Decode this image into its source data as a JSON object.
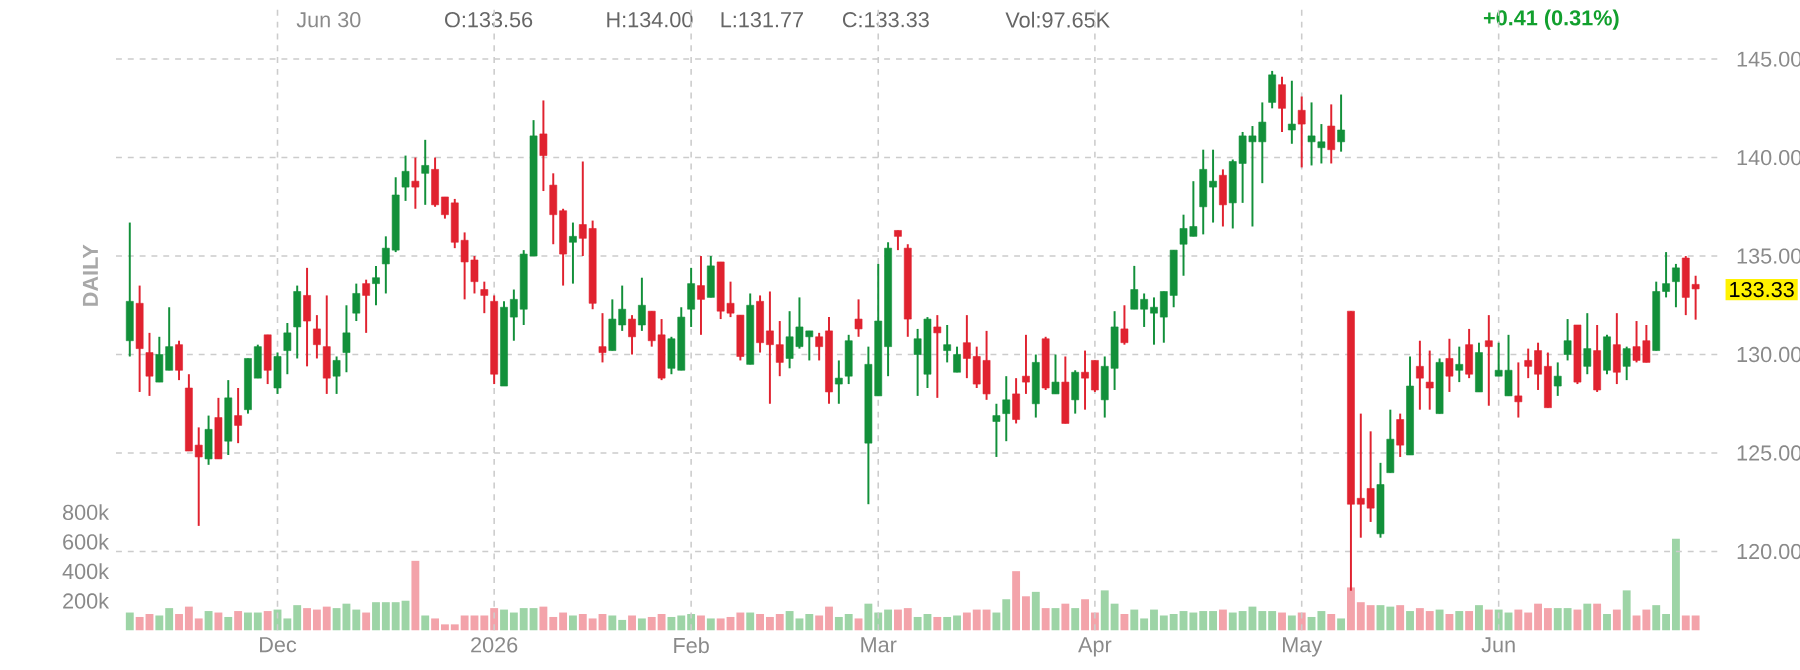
{
  "chart_data": {
    "type": "candlestick",
    "categories": [
      null,
      null,
      null,
      null,
      null,
      null,
      null,
      null,
      null,
      null,
      null,
      null,
      null,
      null,
      null,
      "Dec",
      null,
      null,
      null,
      null,
      null,
      null,
      null,
      null,
      null,
      null,
      null,
      null,
      null,
      null,
      null,
      null,
      null,
      null,
      null,
      null,
      null,
      "2026",
      null,
      null,
      null,
      null,
      null,
      null,
      null,
      null,
      null,
      null,
      null,
      null,
      null,
      null,
      null,
      null,
      null,
      null,
      null,
      "Feb",
      null,
      null,
      null,
      null,
      null,
      null,
      null,
      null,
      null,
      null,
      null,
      null,
      null,
      null,
      null,
      null,
      null,
      null,
      "Mar",
      null,
      null,
      null,
      null,
      null,
      null,
      null,
      null,
      null,
      null,
      null,
      null,
      null,
      null,
      null,
      null,
      null,
      null,
      null,
      null,
      null,
      "Apr",
      null,
      null,
      null,
      null,
      null,
      null,
      null,
      null,
      null,
      null,
      null,
      null,
      null,
      null,
      null,
      null,
      null,
      null,
      null,
      null,
      "May",
      null,
      null,
      null,
      null,
      null,
      null,
      null,
      null,
      null,
      null,
      null,
      null,
      null,
      null,
      null,
      null,
      null,
      null,
      null,
      "Jun",
      null,
      null,
      null,
      null,
      null,
      null,
      null,
      null,
      null,
      null,
      null,
      null,
      null,
      null,
      null,
      null,
      null,
      null,
      null,
      null
    ],
    "ohlc": [
      [
        130.7,
        136.7,
        129.9,
        132.7
      ],
      [
        132.6,
        133.5,
        128.1,
        130.3
      ],
      [
        130.1,
        131.1,
        127.9,
        128.9
      ],
      [
        128.6,
        130.9,
        128.6,
        130.0
      ],
      [
        129.2,
        132.4,
        129.2,
        130.4
      ],
      [
        130.5,
        130.7,
        128.7,
        129.2
      ],
      [
        128.3,
        129.0,
        125.1,
        125.1
      ],
      [
        125.4,
        126.3,
        121.3,
        124.8
      ],
      [
        124.7,
        126.9,
        124.4,
        126.2
      ],
      [
        126.8,
        127.8,
        124.7,
        124.7
      ],
      [
        125.6,
        128.7,
        124.9,
        127.8
      ],
      [
        126.9,
        128.3,
        125.5,
        126.4
      ],
      [
        127.2,
        129.8,
        127.0,
        129.8
      ],
      [
        128.8,
        130.5,
        128.8,
        130.4
      ],
      [
        131.0,
        131.0,
        128.5,
        129.2
      ],
      [
        128.3,
        130.1,
        128.0,
        129.9
      ],
      [
        130.2,
        131.6,
        129.0,
        131.1
      ],
      [
        131.4,
        133.5,
        129.8,
        133.2
      ],
      [
        133.0,
        134.4,
        129.4,
        131.7
      ],
      [
        131.3,
        132.0,
        129.8,
        130.5
      ],
      [
        130.4,
        133.0,
        128.0,
        128.8
      ],
      [
        128.9,
        129.9,
        128.0,
        129.7
      ],
      [
        130.1,
        132.5,
        129.1,
        131.1
      ],
      [
        132.1,
        133.6,
        131.7,
        133.1
      ],
      [
        133.6,
        133.8,
        131.1,
        133.0
      ],
      [
        133.6,
        134.5,
        132.5,
        133.9
      ],
      [
        134.6,
        136.0,
        133.1,
        135.4
      ],
      [
        135.3,
        139.0,
        135.2,
        138.1
      ],
      [
        138.5,
        140.1,
        137.8,
        139.3
      ],
      [
        138.8,
        140.0,
        137.4,
        138.5
      ],
      [
        139.2,
        140.9,
        137.6,
        139.6
      ],
      [
        139.4,
        140.0,
        137.5,
        137.6
      ],
      [
        138.0,
        138.0,
        136.9,
        137.1
      ],
      [
        137.7,
        137.9,
        135.4,
        135.7
      ],
      [
        135.8,
        136.2,
        132.8,
        134.7
      ],
      [
        134.8,
        135.0,
        133.1,
        133.7
      ],
      [
        133.3,
        133.7,
        132.1,
        133.0
      ],
      [
        132.7,
        133.0,
        128.5,
        129.0
      ],
      [
        128.4,
        132.7,
        128.4,
        132.4
      ],
      [
        131.9,
        133.3,
        130.7,
        132.8
      ],
      [
        132.3,
        135.3,
        131.5,
        135.1
      ],
      [
        135.0,
        141.9,
        135.0,
        141.1
      ],
      [
        141.2,
        142.9,
        138.3,
        140.1
      ],
      [
        138.6,
        139.2,
        135.6,
        137.1
      ],
      [
        137.3,
        137.4,
        133.5,
        135.1
      ],
      [
        135.7,
        136.7,
        133.6,
        136.0
      ],
      [
        136.6,
        139.8,
        135.0,
        135.9
      ],
      [
        136.4,
        136.8,
        132.3,
        132.6
      ],
      [
        130.4,
        132.1,
        129.6,
        130.1
      ],
      [
        130.2,
        132.8,
        130.2,
        131.8
      ],
      [
        131.5,
        133.5,
        131.2,
        132.3
      ],
      [
        131.8,
        132.0,
        130.0,
        130.9
      ],
      [
        131.5,
        133.9,
        131.2,
        132.5
      ],
      [
        132.2,
        132.2,
        130.4,
        130.7
      ],
      [
        131.0,
        131.8,
        128.7,
        128.8
      ],
      [
        129.3,
        130.9,
        129.0,
        130.8
      ],
      [
        129.2,
        132.4,
        129.2,
        131.9
      ],
      [
        132.3,
        134.4,
        131.4,
        133.6
      ],
      [
        133.5,
        135.0,
        131.0,
        132.8
      ],
      [
        132.9,
        135.0,
        132.9,
        134.5
      ],
      [
        134.7,
        134.7,
        131.8,
        132.2
      ],
      [
        132.6,
        133.7,
        131.9,
        132.1
      ],
      [
        132.0,
        132.0,
        129.7,
        129.9
      ],
      [
        129.5,
        133.1,
        129.5,
        132.5
      ],
      [
        132.7,
        133.0,
        130.1,
        130.6
      ],
      [
        131.2,
        133.2,
        127.5,
        130.5
      ],
      [
        130.5,
        131.7,
        128.9,
        129.6
      ],
      [
        129.8,
        132.2,
        129.3,
        130.9
      ],
      [
        130.4,
        132.9,
        130.3,
        131.4
      ],
      [
        130.9,
        131.2,
        129.7,
        131.2
      ],
      [
        130.9,
        131.1,
        129.7,
        130.4
      ],
      [
        131.2,
        131.9,
        127.5,
        128.1
      ],
      [
        128.5,
        129.7,
        127.5,
        128.8
      ],
      [
        128.9,
        131.0,
        128.5,
        130.7
      ],
      [
        131.8,
        132.8,
        130.9,
        131.3
      ],
      [
        125.5,
        130.4,
        122.4,
        129.5
      ],
      [
        127.9,
        134.6,
        127.9,
        131.7
      ],
      [
        130.4,
        135.7,
        128.9,
        135.4
      ],
      [
        136.3,
        136.3,
        135.3,
        136.0
      ],
      [
        135.4,
        135.6,
        130.9,
        131.8
      ],
      [
        130.0,
        131.3,
        127.9,
        130.8
      ],
      [
        129.0,
        131.9,
        128.3,
        131.8
      ],
      [
        131.4,
        132.0,
        127.8,
        131.1
      ],
      [
        130.2,
        131.5,
        129.6,
        130.5
      ],
      [
        129.1,
        130.4,
        129.1,
        130.0
      ],
      [
        130.6,
        132.0,
        128.8,
        129.8
      ],
      [
        129.9,
        130.4,
        128.3,
        128.5
      ],
      [
        129.7,
        131.2,
        127.7,
        128.0
      ],
      [
        126.6,
        127.5,
        124.8,
        126.9
      ],
      [
        127.0,
        128.9,
        125.6,
        127.7
      ],
      [
        128.0,
        128.8,
        126.5,
        126.7
      ],
      [
        128.9,
        131.0,
        128.0,
        128.6
      ],
      [
        127.5,
        130.0,
        126.8,
        129.6
      ],
      [
        130.8,
        130.9,
        128.2,
        128.3
      ],
      [
        128.0,
        130.0,
        128.0,
        128.6
      ],
      [
        128.6,
        129.9,
        126.5,
        126.5
      ],
      [
        127.7,
        129.2,
        127.0,
        129.1
      ],
      [
        129.1,
        130.2,
        127.2,
        128.8
      ],
      [
        129.7,
        129.7,
        128.1,
        128.2
      ],
      [
        127.7,
        129.9,
        126.8,
        129.4
      ],
      [
        129.3,
        132.2,
        128.2,
        131.4
      ],
      [
        131.3,
        132.5,
        130.5,
        130.6
      ],
      [
        132.3,
        134.5,
        132.3,
        133.3
      ],
      [
        132.3,
        133.1,
        131.4,
        132.8
      ],
      [
        132.1,
        132.9,
        130.5,
        132.4
      ],
      [
        131.9,
        133.2,
        130.6,
        133.2
      ],
      [
        133.0,
        135.3,
        132.4,
        135.3
      ],
      [
        135.6,
        137.1,
        134.0,
        136.4
      ],
      [
        136.0,
        138.8,
        136.0,
        136.5
      ],
      [
        137.5,
        140.4,
        136.1,
        139.4
      ],
      [
        138.5,
        140.4,
        136.7,
        138.8
      ],
      [
        139.1,
        139.4,
        136.5,
        137.6
      ],
      [
        137.7,
        139.9,
        136.4,
        139.8
      ],
      [
        139.7,
        141.3,
        137.7,
        141.1
      ],
      [
        140.8,
        141.6,
        136.5,
        141.1
      ],
      [
        140.8,
        142.8,
        138.7,
        141.8
      ],
      [
        142.8,
        144.4,
        142.5,
        144.2
      ],
      [
        143.7,
        144.1,
        141.3,
        142.5
      ],
      [
        141.4,
        143.9,
        140.7,
        141.7
      ],
      [
        142.4,
        143.1,
        139.5,
        141.7
      ],
      [
        140.8,
        142.8,
        139.6,
        141.1
      ],
      [
        140.5,
        141.7,
        139.7,
        140.8
      ],
      [
        141.6,
        142.7,
        139.7,
        140.4
      ],
      [
        140.8,
        143.2,
        140.3,
        141.4
      ],
      [
        132.2,
        132.2,
        118.0,
        122.4
      ],
      [
        122.7,
        127.0,
        120.7,
        122.4
      ],
      [
        123.2,
        126.1,
        121.5,
        122.2
      ],
      [
        120.9,
        124.5,
        120.7,
        123.4
      ],
      [
        124.0,
        127.2,
        124.0,
        125.7
      ],
      [
        126.7,
        127.0,
        124.8,
        125.4
      ],
      [
        124.9,
        129.9,
        124.9,
        128.4
      ],
      [
        129.4,
        130.7,
        127.2,
        128.8
      ],
      [
        128.6,
        130.2,
        127.2,
        128.3
      ],
      [
        127.0,
        129.8,
        127.0,
        129.6
      ],
      [
        129.8,
        130.8,
        128.1,
        128.9
      ],
      [
        129.2,
        130.4,
        128.6,
        129.5
      ],
      [
        130.5,
        131.3,
        128.8,
        129.0
      ],
      [
        128.1,
        130.6,
        128.1,
        130.1
      ],
      [
        130.7,
        132.0,
        127.4,
        130.4
      ],
      [
        128.9,
        130.6,
        128.9,
        129.2
      ],
      [
        127.9,
        131.0,
        127.9,
        129.2
      ],
      [
        127.9,
        129.6,
        126.8,
        127.6
      ],
      [
        129.7,
        130.3,
        128.8,
        129.4
      ],
      [
        130.2,
        130.6,
        128.2,
        129.0
      ],
      [
        129.4,
        130.1,
        127.3,
        127.3
      ],
      [
        128.4,
        129.6,
        127.9,
        128.9
      ],
      [
        130.0,
        131.8,
        129.7,
        130.7
      ],
      [
        131.5,
        131.5,
        128.5,
        128.6
      ],
      [
        129.4,
        132.1,
        129.0,
        130.3
      ],
      [
        130.2,
        131.5,
        128.1,
        128.2
      ],
      [
        129.2,
        131.0,
        129.0,
        130.9
      ],
      [
        130.5,
        132.1,
        128.5,
        129.1
      ],
      [
        129.4,
        130.4,
        128.7,
        130.3
      ],
      [
        130.4,
        131.7,
        129.6,
        129.7
      ],
      [
        130.7,
        131.5,
        129.6,
        129.6
      ],
      [
        130.2,
        133.7,
        130.2,
        133.2
      ],
      [
        133.2,
        135.2,
        132.9,
        133.6
      ],
      [
        133.7,
        134.6,
        132.4,
        134.4
      ],
      [
        134.9,
        135.0,
        132.0,
        132.9
      ],
      [
        133.56,
        134.0,
        131.77,
        133.33
      ]
    ],
    "colors": [
      "#12903a",
      "#e0222f",
      "#e0222f",
      "#12903a",
      "#12903a",
      "#e0222f",
      "#e0222f",
      "#e0222f",
      "#12903a",
      "#e0222f",
      "#12903a",
      "#e0222f",
      "#12903a",
      "#12903a",
      "#e0222f",
      "#12903a",
      "#12903a",
      "#12903a",
      "#e0222f",
      "#e0222f",
      "#e0222f",
      "#12903a",
      "#12903a",
      "#12903a",
      "#e0222f",
      "#12903a",
      "#12903a",
      "#12903a",
      "#12903a",
      "#e0222f",
      "#12903a",
      "#e0222f",
      "#e0222f",
      "#e0222f",
      "#e0222f",
      "#e0222f",
      "#e0222f",
      "#e0222f",
      "#12903a",
      "#12903a",
      "#12903a",
      "#12903a",
      "#e0222f",
      "#e0222f",
      "#e0222f",
      "#12903a",
      "#e0222f",
      "#e0222f",
      "#e0222f",
      "#12903a",
      "#12903a",
      "#e0222f",
      "#12903a",
      "#e0222f",
      "#e0222f",
      "#12903a",
      "#12903a",
      "#12903a",
      "#e0222f",
      "#12903a",
      "#e0222f",
      "#e0222f",
      "#e0222f",
      "#12903a",
      "#e0222f",
      "#e0222f",
      "#e0222f",
      "#12903a",
      "#12903a",
      "#12903a",
      "#e0222f",
      "#e0222f",
      "#12903a",
      "#12903a",
      "#e0222f",
      "#12903a",
      "#12903a",
      "#12903a",
      "#e0222f",
      "#e0222f",
      "#12903a",
      "#12903a",
      "#e0222f",
      "#12903a",
      "#12903a",
      "#e0222f",
      "#e0222f",
      "#e0222f",
      "#12903a",
      "#12903a",
      "#e0222f",
      "#e0222f",
      "#12903a",
      "#e0222f",
      "#12903a",
      "#e0222f",
      "#12903a",
      "#e0222f",
      "#e0222f",
      "#12903a",
      "#12903a",
      "#e0222f",
      "#12903a",
      "#12903a",
      "#12903a",
      "#12903a",
      "#12903a",
      "#12903a",
      "#12903a",
      "#12903a",
      "#12903a",
      "#e0222f",
      "#12903a",
      "#12903a",
      "#12903a",
      "#12903a",
      "#12903a",
      "#e0222f",
      "#12903a",
      "#e0222f",
      "#12903a",
      "#12903a",
      "#e0222f",
      "#12903a",
      "#e0222f",
      "#e0222f",
      "#e0222f",
      "#12903a",
      "#12903a",
      "#e0222f",
      "#12903a",
      "#e0222f",
      "#e0222f",
      "#12903a",
      "#e0222f",
      "#12903a",
      "#e0222f",
      "#12903a",
      "#e0222f",
      "#12903a",
      "#12903a",
      "#e0222f",
      "#e0222f",
      "#e0222f",
      "#e0222f",
      "#12903a",
      "#12903a",
      "#e0222f",
      "#12903a",
      "#e0222f",
      "#12903a",
      "#e0222f",
      "#12903a",
      "#e0222f",
      "#e0222f",
      "#12903a",
      "#12903a",
      "#12903a",
      "#e0222f",
      "#e0222f"
    ],
    "series": [
      {
        "type": "bar",
        "axis": "y2",
        "values": [
          120000,
          90000,
          110000,
          100000,
          150000,
          110000,
          160000,
          80000,
          130000,
          120000,
          90000,
          130000,
          120000,
          120000,
          130000,
          140000,
          80000,
          170000,
          150000,
          140000,
          160000,
          150000,
          180000,
          140000,
          120000,
          190000,
          190000,
          190000,
          200000,
          470000,
          100000,
          80000,
          40000,
          40000,
          100000,
          100000,
          100000,
          150000,
          140000,
          120000,
          150000,
          150000,
          160000,
          90000,
          120000,
          100000,
          110000,
          80000,
          110000,
          100000,
          70000,
          100000,
          80000,
          90000,
          110000,
          90000,
          100000,
          110000,
          100000,
          80000,
          80000,
          90000,
          120000,
          120000,
          110000,
          90000,
          110000,
          130000,
          80000,
          110000,
          100000,
          160000,
          90000,
          110000,
          80000,
          180000,
          120000,
          140000,
          140000,
          150000,
          90000,
          110000,
          90000,
          90000,
          100000,
          120000,
          140000,
          140000,
          120000,
          210000,
          400000,
          230000,
          260000,
          150000,
          150000,
          180000,
          150000,
          210000,
          120000,
          270000,
          180000,
          110000,
          140000,
          80000,
          140000,
          100000,
          110000,
          130000,
          120000,
          130000,
          130000,
          140000,
          120000,
          130000,
          160000,
          130000,
          130000,
          120000,
          100000,
          120000,
          90000,
          130000,
          110000,
          80000,
          290000,
          190000,
          170000,
          170000,
          160000,
          170000,
          130000,
          150000,
          130000,
          140000,
          110000,
          130000,
          130000,
          170000,
          140000,
          140000,
          120000,
          140000,
          120000,
          180000,
          150000,
          150000,
          150000,
          140000,
          180000,
          180000,
          110000,
          140000,
          270000,
          100000,
          140000,
          170000,
          110000,
          620000,
          100000,
          100000
        ],
        "colors": [
          "#9dd4a6",
          "#f3a3aa",
          "#f3a3aa",
          "#9dd4a6",
          "#9dd4a6",
          "#f3a3aa",
          "#f3a3aa",
          "#f3a3aa",
          "#9dd4a6",
          "#f3a3aa",
          "#9dd4a6",
          "#f3a3aa",
          "#9dd4a6",
          "#9dd4a6",
          "#f3a3aa",
          "#9dd4a6",
          "#9dd4a6",
          "#9dd4a6",
          "#f3a3aa",
          "#f3a3aa",
          "#f3a3aa",
          "#9dd4a6",
          "#9dd4a6",
          "#9dd4a6",
          "#f3a3aa",
          "#9dd4a6",
          "#9dd4a6",
          "#9dd4a6",
          "#9dd4a6",
          "#f3a3aa",
          "#9dd4a6",
          "#f3a3aa",
          "#f3a3aa",
          "#f3a3aa",
          "#f3a3aa",
          "#f3a3aa",
          "#f3a3aa",
          "#f3a3aa",
          "#9dd4a6",
          "#9dd4a6",
          "#9dd4a6",
          "#9dd4a6",
          "#f3a3aa",
          "#f3a3aa",
          "#f3a3aa",
          "#9dd4a6",
          "#f3a3aa",
          "#f3a3aa",
          "#f3a3aa",
          "#9dd4a6",
          "#9dd4a6",
          "#f3a3aa",
          "#9dd4a6",
          "#f3a3aa",
          "#f3a3aa",
          "#9dd4a6",
          "#9dd4a6",
          "#9dd4a6",
          "#f3a3aa",
          "#9dd4a6",
          "#f3a3aa",
          "#f3a3aa",
          "#f3a3aa",
          "#9dd4a6",
          "#f3a3aa",
          "#f3a3aa",
          "#f3a3aa",
          "#9dd4a6",
          "#9dd4a6",
          "#9dd4a6",
          "#f3a3aa",
          "#f3a3aa",
          "#9dd4a6",
          "#9dd4a6",
          "#f3a3aa",
          "#9dd4a6",
          "#9dd4a6",
          "#9dd4a6",
          "#f3a3aa",
          "#f3a3aa",
          "#9dd4a6",
          "#9dd4a6",
          "#f3a3aa",
          "#9dd4a6",
          "#9dd4a6",
          "#f3a3aa",
          "#f3a3aa",
          "#f3a3aa",
          "#9dd4a6",
          "#9dd4a6",
          "#f3a3aa",
          "#f3a3aa",
          "#9dd4a6",
          "#f3a3aa",
          "#9dd4a6",
          "#f3a3aa",
          "#9dd4a6",
          "#f3a3aa",
          "#f3a3aa",
          "#9dd4a6",
          "#9dd4a6",
          "#f3a3aa",
          "#9dd4a6",
          "#9dd4a6",
          "#9dd4a6",
          "#9dd4a6",
          "#9dd4a6",
          "#9dd4a6",
          "#9dd4a6",
          "#9dd4a6",
          "#9dd4a6",
          "#f3a3aa",
          "#9dd4a6",
          "#9dd4a6",
          "#9dd4a6",
          "#9dd4a6",
          "#9dd4a6",
          "#f3a3aa",
          "#9dd4a6",
          "#f3a3aa",
          "#9dd4a6",
          "#9dd4a6",
          "#f3a3aa",
          "#9dd4a6",
          "#f3a3aa",
          "#f3a3aa",
          "#f3a3aa",
          "#9dd4a6",
          "#9dd4a6",
          "#f3a3aa",
          "#9dd4a6",
          "#f3a3aa",
          "#f3a3aa",
          "#9dd4a6",
          "#f3a3aa",
          "#9dd4a6",
          "#f3a3aa",
          "#9dd4a6",
          "#f3a3aa",
          "#9dd4a6",
          "#9dd4a6",
          "#f3a3aa",
          "#f3a3aa",
          "#f3a3aa",
          "#f3a3aa",
          "#9dd4a6",
          "#9dd4a6",
          "#f3a3aa",
          "#9dd4a6",
          "#f3a3aa",
          "#9dd4a6",
          "#f3a3aa",
          "#9dd4a6",
          "#f3a3aa",
          "#f3a3aa",
          "#9dd4a6",
          "#9dd4a6",
          "#9dd4a6",
          "#f3a3aa",
          "#f3a3aa"
        ]
      }
    ],
    "ylim": [
      116,
      147.5
    ],
    "yticks": [
      {
        "value": 120,
        "label": "120.00"
      },
      {
        "value": 125,
        "label": "125.00"
      },
      {
        "value": 130,
        "label": "130.00"
      },
      {
        "value": 135,
        "label": "135.00"
      },
      {
        "value": 140,
        "label": "140.00"
      },
      {
        "value": 145,
        "label": "145.00"
      }
    ],
    "y2lim": [
      0,
      4200000
    ],
    "y2ticks": [
      {
        "value": 200000,
        "label": "200k"
      },
      {
        "value": 400000,
        "label": "400k"
      },
      {
        "value": 600000,
        "label": "600k"
      },
      {
        "value": 800000,
        "label": "800k"
      }
    ],
    "grid": true,
    "annotations": [
      "Jun 30",
      "O:133.56",
      "H:134.00",
      "L:131.77",
      "C:133.33",
      "Vol:97.65K",
      "+0.41 (0.31%)",
      "DAILY",
      "133.33"
    ]
  }
}
